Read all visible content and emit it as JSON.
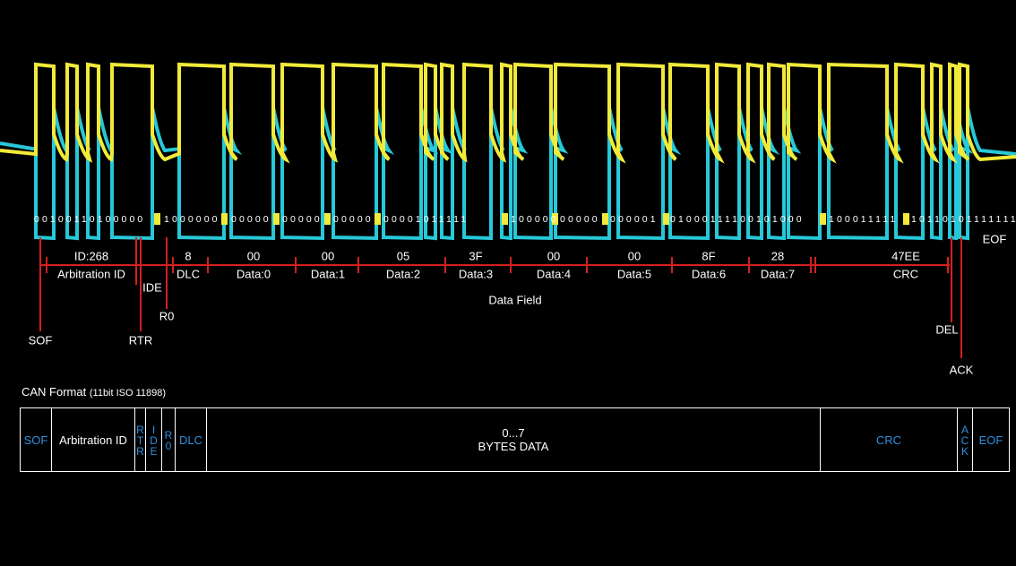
{
  "waveform": {
    "bit_groups": [
      "00100110100000",
      "1000000",
      "00000",
      "00000",
      "00000",
      "00001011111",
      "100000",
      "00000",
      "000001",
      "01000111100101000",
      "100011111",
      "10110101111111"
    ]
  },
  "fields": [
    {
      "value": "ID:268",
      "label": "Arbitration ID"
    },
    {
      "value": "8",
      "label": "DLC"
    },
    {
      "value": "00",
      "label": "Data:0"
    },
    {
      "value": "00",
      "label": "Data:1"
    },
    {
      "value": "05",
      "label": "Data:2"
    },
    {
      "value": "3F",
      "label": "Data:3"
    },
    {
      "value": "00",
      "label": "Data:4"
    },
    {
      "value": "00",
      "label": "Data:5"
    },
    {
      "value": "8F",
      "label": "Data:6"
    },
    {
      "value": "28",
      "label": "Data:7"
    },
    {
      "value": "47EE",
      "label": "CRC"
    }
  ],
  "data_field_label": "Data Field",
  "markers": [
    "SOF",
    "RTR",
    "IDE",
    "R0",
    "DEL",
    "ACK",
    "EOF"
  ],
  "format": {
    "title": "CAN Format",
    "subtitle": "(11bit ISO 11898)",
    "cells": [
      "SOF",
      "Arbitration ID",
      "RTR",
      "IDE",
      "R0",
      "DLC",
      "CRC",
      "ACK",
      "EOF"
    ],
    "data_cell": {
      "range": "0...7",
      "label": "BYTES DATA"
    }
  }
}
